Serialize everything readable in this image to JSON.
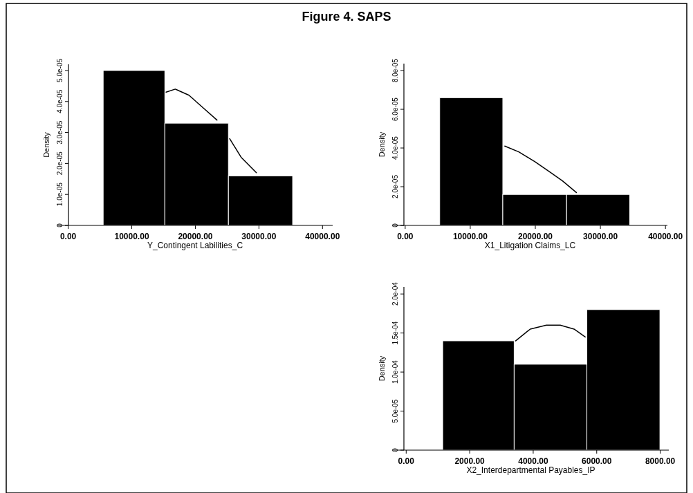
{
  "chart_data": [
    {
      "type": "histogram",
      "title": "Figure 4. SAPS",
      "xlabel": "Y_Contingent Labilities_C",
      "ylabel": "Density",
      "bins": [
        5500,
        15200,
        25200,
        35300
      ],
      "values": [
        5e-05,
        3.3e-05,
        1.6e-05
      ],
      "color": "#000000",
      "xlim": [
        -1700,
        41600
      ],
      "ylim": [
        0,
        5.2e-05
      ],
      "xticks": [
        {
          "value": 0,
          "label": "0.00"
        },
        {
          "value": 10000,
          "label": "10000.00"
        },
        {
          "value": 20000,
          "label": "20000.00"
        },
        {
          "value": 30000,
          "label": "30000.00"
        },
        {
          "value": 40000,
          "label": "40000.00"
        }
      ],
      "yticks": [
        {
          "value": 0,
          "label": "0"
        },
        {
          "value": 1e-05,
          "label": "1.0e-05"
        },
        {
          "value": 2e-05,
          "label": "2.0e-05"
        },
        {
          "value": 3e-05,
          "label": "3.0e-05"
        },
        {
          "value": 4e-05,
          "label": "4.0e-05"
        },
        {
          "value": 5e-05,
          "label": "5.0e-05"
        }
      ],
      "series": [
        {
          "type": "line",
          "color": "#000000",
          "x": [
            15400,
            16840,
            19000,
            21200,
            23400,
            24300,
            25400,
            27200,
            29600
          ],
          "values": [
            4.3e-05,
            4.4e-05,
            4.2e-05,
            3.8e-05,
            3.4e-05,
            null,
            2.8e-05,
            2.2e-05,
            1.7e-05
          ]
        }
      ]
    },
    {
      "type": "histogram",
      "xlabel": "X1_Litigation Claims_LC",
      "ylabel": "Density",
      "bins": [
        5300,
        15000,
        24800,
        34500
      ],
      "values": [
        6.6e-05,
        1.6e-05,
        1.6e-05
      ],
      "color": "#000000",
      "xlim": [
        -1900,
        40300
      ],
      "ylim": [
        0,
        8.36e-05
      ],
      "xticks": [
        {
          "value": 0,
          "label": "0.00"
        },
        {
          "value": 10000,
          "label": "10000.00"
        },
        {
          "value": 20000,
          "label": "20000.00"
        },
        {
          "value": 30000,
          "label": "30000.00"
        },
        {
          "value": 40000,
          "label": "40000.00"
        }
      ],
      "yticks": [
        {
          "value": 0,
          "label": "0"
        },
        {
          "value": 2e-05,
          "label": "2.0e-05"
        },
        {
          "value": 4e-05,
          "label": "4.0e-05"
        },
        {
          "value": 6e-05,
          "label": "6.0e-05"
        },
        {
          "value": 8e-05,
          "label": "8.0e-05"
        }
      ],
      "series": [
        {
          "type": "line",
          "color": "#000000",
          "x": [
            15300,
            17450,
            19900,
            22060,
            24180,
            26300
          ],
          "values": [
            4.1e-05,
            3.8e-05,
            3.3e-05,
            2.8e-05,
            2.3e-05,
            1.7e-05
          ]
        }
      ]
    },
    {
      "type": "histogram",
      "xlabel": "X2_Interdepartmental Payables_IP",
      "ylabel": "Density",
      "bins": [
        1150,
        3400,
        5690,
        7990
      ],
      "values": [
        0.00014,
        0.00011,
        0.00018
      ],
      "color": "#000000",
      "xlim": [
        -420,
        8270
      ],
      "ylim": [
        0,
        0.000209
      ],
      "xticks": [
        {
          "value": 0,
          "label": "0.00"
        },
        {
          "value": 2000,
          "label": "2000.00"
        },
        {
          "value": 4000,
          "label": "4000.00"
        },
        {
          "value": 6000,
          "label": "6000.00"
        },
        {
          "value": 8000,
          "label": "8000.00"
        }
      ],
      "yticks": [
        {
          "value": 0,
          "label": "0"
        },
        {
          "value": 5e-05,
          "label": "5.0e-05"
        },
        {
          "value": 0.0001,
          "label": "1.0e-04"
        },
        {
          "value": 0.00015,
          "label": "1.5e-04"
        },
        {
          "value": 0.0002,
          "label": "2.0e-04"
        }
      ],
      "series": [
        {
          "type": "line",
          "color": "#000000",
          "x": [
            3450,
            3905,
            4415,
            4851,
            5287,
            5640
          ],
          "values": [
            0.00014,
            0.000155,
            0.00016,
            0.00016,
            0.000155,
            0.000145
          ]
        }
      ]
    }
  ]
}
